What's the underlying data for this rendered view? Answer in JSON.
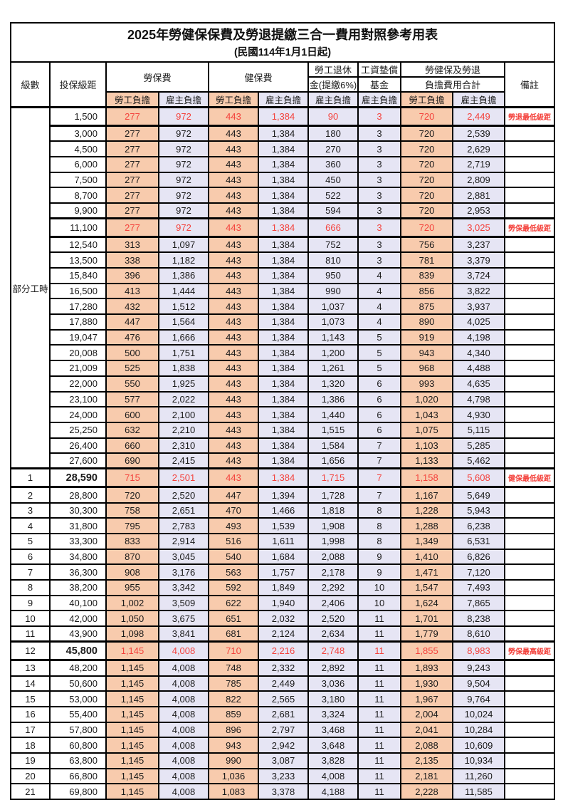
{
  "title": "2025年勞健保保費及勞退提繳三合一費用對照參考用表",
  "subtitle": "(民國114年1月1日起)",
  "colors": {
    "labor_share_bg": "#F8CBAD",
    "employer_share_bg": "#E6E5F4",
    "highlight_red": "#F4423C",
    "border": "#000000"
  },
  "header": {
    "level": "級數",
    "bracket": "投保級距",
    "labor_insurance": "勞保費",
    "health_insurance": "健保費",
    "pension_line1": "勞工退休",
    "pension_line2": "金(提繳6%)",
    "wage_fund_line1": "工資墊償",
    "wage_fund_line2": "基金",
    "total_line1": "勞健保及勞退",
    "total_line2": "負擔費用合計",
    "remark": "備註",
    "labor_share": "勞工負擔",
    "employer_share": "雇主負擔"
  },
  "part_time_label": "部分工時",
  "part_time_rowspan": 23,
  "rows": [
    {
      "b": "1,500",
      "c": [
        "277",
        "972",
        "443",
        "1,384",
        "90",
        "3",
        "720",
        "2,449"
      ],
      "r": "勞退最低級距",
      "hl": true
    },
    {
      "b": "3,000",
      "c": [
        "277",
        "972",
        "443",
        "1,384",
        "180",
        "3",
        "720",
        "2,539"
      ]
    },
    {
      "b": "4,500",
      "c": [
        "277",
        "972",
        "443",
        "1,384",
        "270",
        "3",
        "720",
        "2,629"
      ]
    },
    {
      "b": "6,000",
      "c": [
        "277",
        "972",
        "443",
        "1,384",
        "360",
        "3",
        "720",
        "2,719"
      ]
    },
    {
      "b": "7,500",
      "c": [
        "277",
        "972",
        "443",
        "1,384",
        "450",
        "3",
        "720",
        "2,809"
      ]
    },
    {
      "b": "8,700",
      "c": [
        "277",
        "972",
        "443",
        "1,384",
        "522",
        "3",
        "720",
        "2,881"
      ]
    },
    {
      "b": "9,900",
      "c": [
        "277",
        "972",
        "443",
        "1,384",
        "594",
        "3",
        "720",
        "2,953"
      ]
    },
    {
      "b": "11,100",
      "c": [
        "277",
        "972",
        "443",
        "1,384",
        "666",
        "3",
        "720",
        "3,025"
      ],
      "r": "勞保最低級距",
      "hl": true
    },
    {
      "b": "12,540",
      "c": [
        "313",
        "1,097",
        "443",
        "1,384",
        "752",
        "3",
        "756",
        "3,237"
      ]
    },
    {
      "b": "13,500",
      "c": [
        "338",
        "1,182",
        "443",
        "1,384",
        "810",
        "3",
        "781",
        "3,379"
      ]
    },
    {
      "b": "15,840",
      "c": [
        "396",
        "1,386",
        "443",
        "1,384",
        "950",
        "4",
        "839",
        "3,724"
      ]
    },
    {
      "b": "16,500",
      "c": [
        "413",
        "1,444",
        "443",
        "1,384",
        "990",
        "4",
        "856",
        "3,822"
      ]
    },
    {
      "b": "17,280",
      "c": [
        "432",
        "1,512",
        "443",
        "1,384",
        "1,037",
        "4",
        "875",
        "3,937"
      ]
    },
    {
      "b": "17,880",
      "c": [
        "447",
        "1,564",
        "443",
        "1,384",
        "1,073",
        "4",
        "890",
        "4,025"
      ]
    },
    {
      "b": "19,047",
      "c": [
        "476",
        "1,666",
        "443",
        "1,384",
        "1,143",
        "5",
        "919",
        "4,198"
      ]
    },
    {
      "b": "20,008",
      "c": [
        "500",
        "1,751",
        "443",
        "1,384",
        "1,200",
        "5",
        "943",
        "4,340"
      ]
    },
    {
      "b": "21,009",
      "c": [
        "525",
        "1,838",
        "443",
        "1,384",
        "1,261",
        "5",
        "968",
        "4,488"
      ]
    },
    {
      "b": "22,000",
      "c": [
        "550",
        "1,925",
        "443",
        "1,384",
        "1,320",
        "6",
        "993",
        "4,635"
      ]
    },
    {
      "b": "23,100",
      "c": [
        "577",
        "2,022",
        "443",
        "1,384",
        "1,386",
        "6",
        "1,020",
        "4,798"
      ]
    },
    {
      "b": "24,000",
      "c": [
        "600",
        "2,100",
        "443",
        "1,384",
        "1,440",
        "6",
        "1,043",
        "4,930"
      ]
    },
    {
      "b": "25,250",
      "c": [
        "632",
        "2,210",
        "443",
        "1,384",
        "1,515",
        "6",
        "1,075",
        "5,115"
      ]
    },
    {
      "b": "26,400",
      "c": [
        "660",
        "2,310",
        "443",
        "1,384",
        "1,584",
        "7",
        "1,103",
        "5,285"
      ]
    },
    {
      "b": "27,600",
      "c": [
        "690",
        "2,415",
        "443",
        "1,384",
        "1,656",
        "7",
        "1,133",
        "5,462"
      ]
    },
    {
      "lv": "1",
      "b": "28,590",
      "c": [
        "715",
        "2,501",
        "443",
        "1,384",
        "1,715",
        "7",
        "1,158",
        "5,608"
      ],
      "r": "健保最低級距",
      "hl": true,
      "bb": true
    },
    {
      "lv": "2",
      "b": "28,800",
      "c": [
        "720",
        "2,520",
        "447",
        "1,394",
        "1,728",
        "7",
        "1,167",
        "5,649"
      ]
    },
    {
      "lv": "3",
      "b": "30,300",
      "c": [
        "758",
        "2,651",
        "470",
        "1,466",
        "1,818",
        "8",
        "1,228",
        "5,943"
      ]
    },
    {
      "lv": "4",
      "b": "31,800",
      "c": [
        "795",
        "2,783",
        "493",
        "1,539",
        "1,908",
        "8",
        "1,288",
        "6,238"
      ]
    },
    {
      "lv": "5",
      "b": "33,300",
      "c": [
        "833",
        "2,914",
        "516",
        "1,611",
        "1,998",
        "8",
        "1,349",
        "6,531"
      ]
    },
    {
      "lv": "6",
      "b": "34,800",
      "c": [
        "870",
        "3,045",
        "540",
        "1,684",
        "2,088",
        "9",
        "1,410",
        "6,826"
      ]
    },
    {
      "lv": "7",
      "b": "36,300",
      "c": [
        "908",
        "3,176",
        "563",
        "1,757",
        "2,178",
        "9",
        "1,471",
        "7,120"
      ]
    },
    {
      "lv": "8",
      "b": "38,200",
      "c": [
        "955",
        "3,342",
        "592",
        "1,849",
        "2,292",
        "10",
        "1,547",
        "7,493"
      ]
    },
    {
      "lv": "9",
      "b": "40,100",
      "c": [
        "1,002",
        "3,509",
        "622",
        "1,940",
        "2,406",
        "10",
        "1,624",
        "7,865"
      ]
    },
    {
      "lv": "10",
      "b": "42,000",
      "c": [
        "1,050",
        "3,675",
        "651",
        "2,032",
        "2,520",
        "11",
        "1,701",
        "8,238"
      ]
    },
    {
      "lv": "11",
      "b": "43,900",
      "c": [
        "1,098",
        "3,841",
        "681",
        "2,124",
        "2,634",
        "11",
        "1,779",
        "8,610"
      ]
    },
    {
      "lv": "12",
      "b": "45,800",
      "c": [
        "1,145",
        "4,008",
        "710",
        "2,216",
        "2,748",
        "11",
        "1,855",
        "8,983"
      ],
      "r": "勞保最高級距",
      "hl": true,
      "bb": true
    },
    {
      "lv": "13",
      "b": "48,200",
      "c": [
        "1,145",
        "4,008",
        "748",
        "2,332",
        "2,892",
        "11",
        "1,893",
        "9,243"
      ]
    },
    {
      "lv": "14",
      "b": "50,600",
      "c": [
        "1,145",
        "4,008",
        "785",
        "2,449",
        "3,036",
        "11",
        "1,930",
        "9,504"
      ]
    },
    {
      "lv": "15",
      "b": "53,000",
      "c": [
        "1,145",
        "4,008",
        "822",
        "2,565",
        "3,180",
        "11",
        "1,967",
        "9,764"
      ]
    },
    {
      "lv": "16",
      "b": "55,400",
      "c": [
        "1,145",
        "4,008",
        "859",
        "2,681",
        "3,324",
        "11",
        "2,004",
        "10,024"
      ]
    },
    {
      "lv": "17",
      "b": "57,800",
      "c": [
        "1,145",
        "4,008",
        "896",
        "2,797",
        "3,468",
        "11",
        "2,041",
        "10,284"
      ]
    },
    {
      "lv": "18",
      "b": "60,800",
      "c": [
        "1,145",
        "4,008",
        "943",
        "2,942",
        "3,648",
        "11",
        "2,088",
        "10,609"
      ]
    },
    {
      "lv": "19",
      "b": "63,800",
      "c": [
        "1,145",
        "4,008",
        "990",
        "3,087",
        "3,828",
        "11",
        "2,135",
        "10,934"
      ]
    },
    {
      "lv": "20",
      "b": "66,800",
      "c": [
        "1,145",
        "4,008",
        "1,036",
        "3,233",
        "4,008",
        "11",
        "2,181",
        "11,260"
      ]
    },
    {
      "lv": "21",
      "b": "69,800",
      "c": [
        "1,145",
        "4,008",
        "1,083",
        "3,378",
        "4,188",
        "11",
        "2,228",
        "11,585"
      ]
    }
  ],
  "column_keys": [
    "li-labor",
    "li-employer",
    "hi-labor",
    "hi-employer",
    "pension-employer",
    "fund-employer",
    "total-labor",
    "total-employer"
  ],
  "column_styles": [
    "labor",
    "emp",
    "labor",
    "emp",
    "emp",
    "emp",
    "labor",
    "emp"
  ]
}
